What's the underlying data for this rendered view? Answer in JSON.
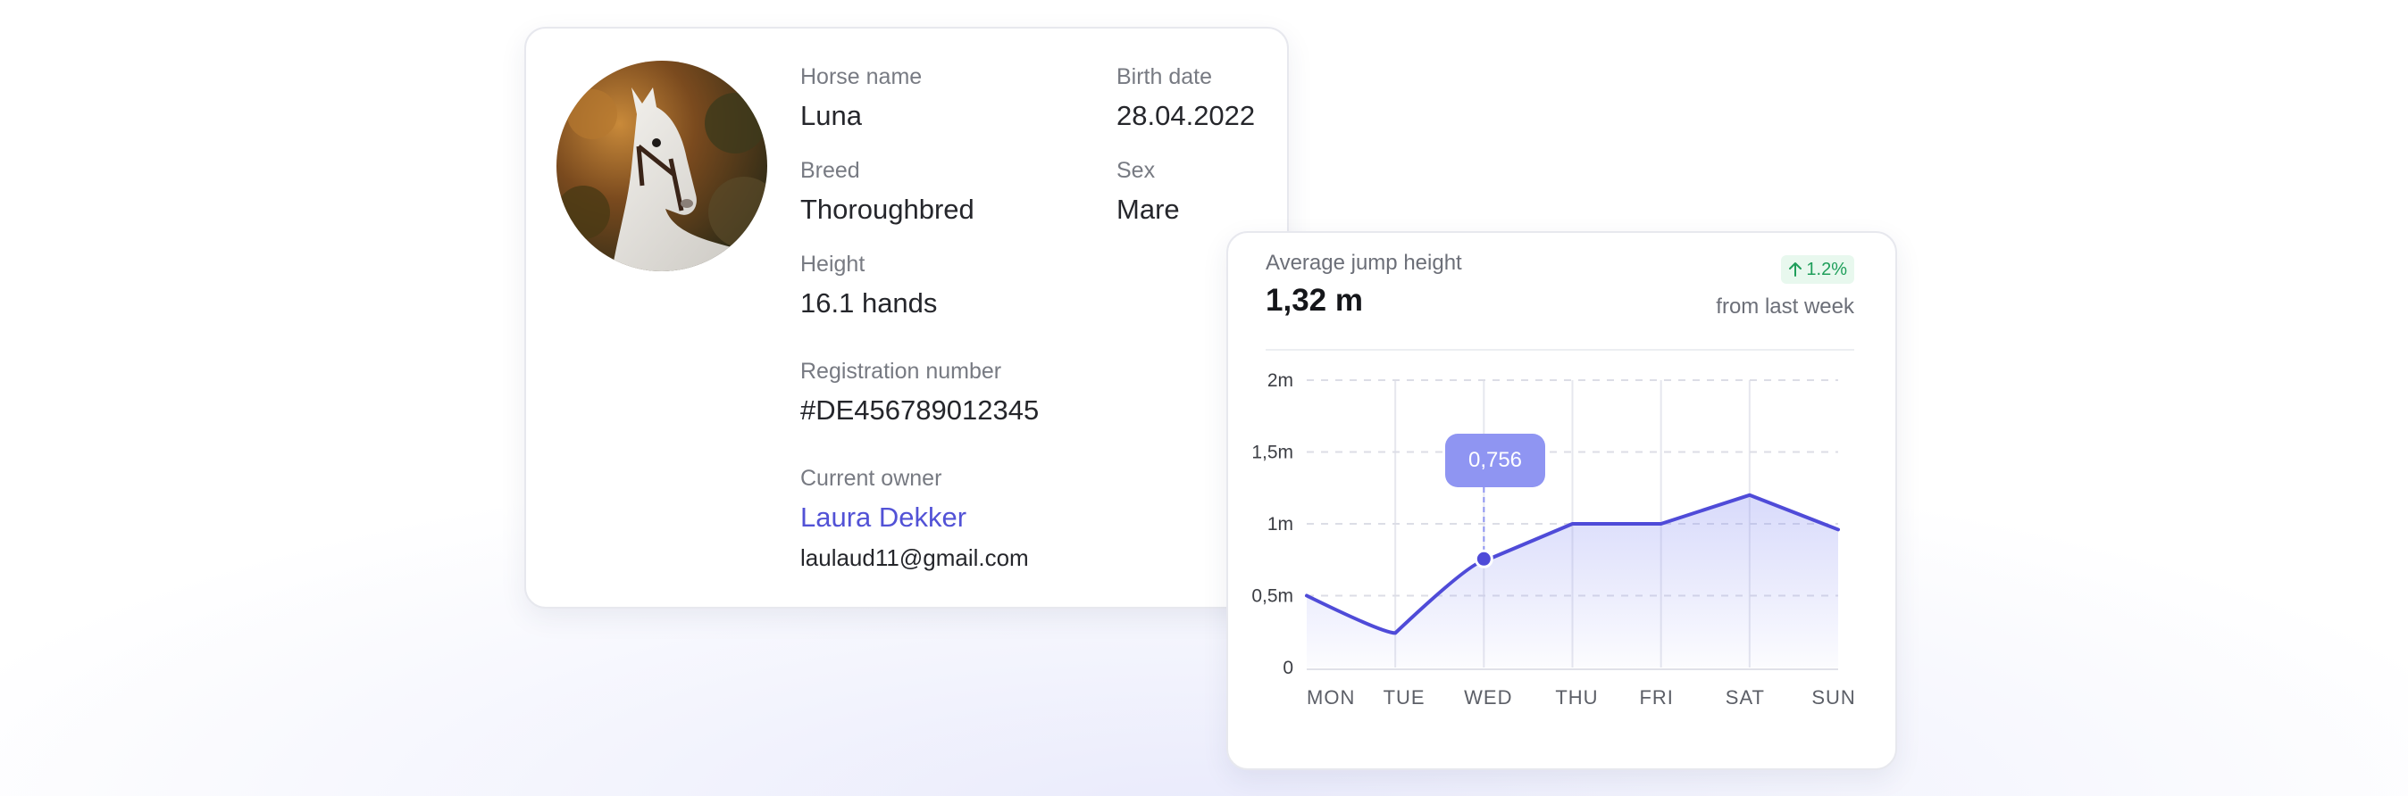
{
  "horse": {
    "name_label": "Horse name",
    "name": "Luna",
    "birth_label": "Birth date",
    "birth": "28.04.2022",
    "breed_label": "Breed",
    "breed": "Thoroughbred",
    "sex_label": "Sex",
    "sex": "Mare",
    "height_label": "Height",
    "height": "16.1 hands",
    "registration_label": "Registration number",
    "registration": "#DE456789012345",
    "owner_label": "Current owner",
    "owner_name": "Laura Dekker",
    "owner_email": "laulaud11@gmail.com"
  },
  "stats": {
    "title": "Average jump height",
    "value": "1,32 m",
    "change": "1.2%",
    "change_icon": "arrow-up-icon",
    "change_sub": "from last week",
    "tooltip": "0,756",
    "colors": {
      "line": "#4f4bd8",
      "accent_green": "#1e9e5a",
      "tooltip": "#8f95f2"
    }
  },
  "chart_data": {
    "type": "area",
    "title": "Average jump height",
    "categories": [
      "MON",
      "TUE",
      "WED",
      "THU",
      "FRI",
      "SAT",
      "SUN"
    ],
    "x_labels": [
      "MON",
      "TUE",
      "WED",
      "THU",
      "FRI",
      "SAT",
      "SUN"
    ],
    "x_positions": [
      0,
      1.1,
      2.05,
      3.1,
      4.05,
      5.0,
      6.2
    ],
    "values": [
      0.5,
      0.24,
      0.74,
      1.0,
      1.0,
      1.2,
      0.96
    ],
    "highlight": {
      "x": 2.0,
      "value": 0.756,
      "label": "0,756"
    },
    "y_ticks": [
      {
        "value": 0,
        "label": "0"
      },
      {
        "value": 0.5,
        "label": "0,5m"
      },
      {
        "value": 1,
        "label": "1m"
      },
      {
        "value": 1.5,
        "label": "1,5m"
      },
      {
        "value": 2,
        "label": "2m"
      }
    ],
    "ylim": [
      0,
      2
    ],
    "grid": true
  }
}
